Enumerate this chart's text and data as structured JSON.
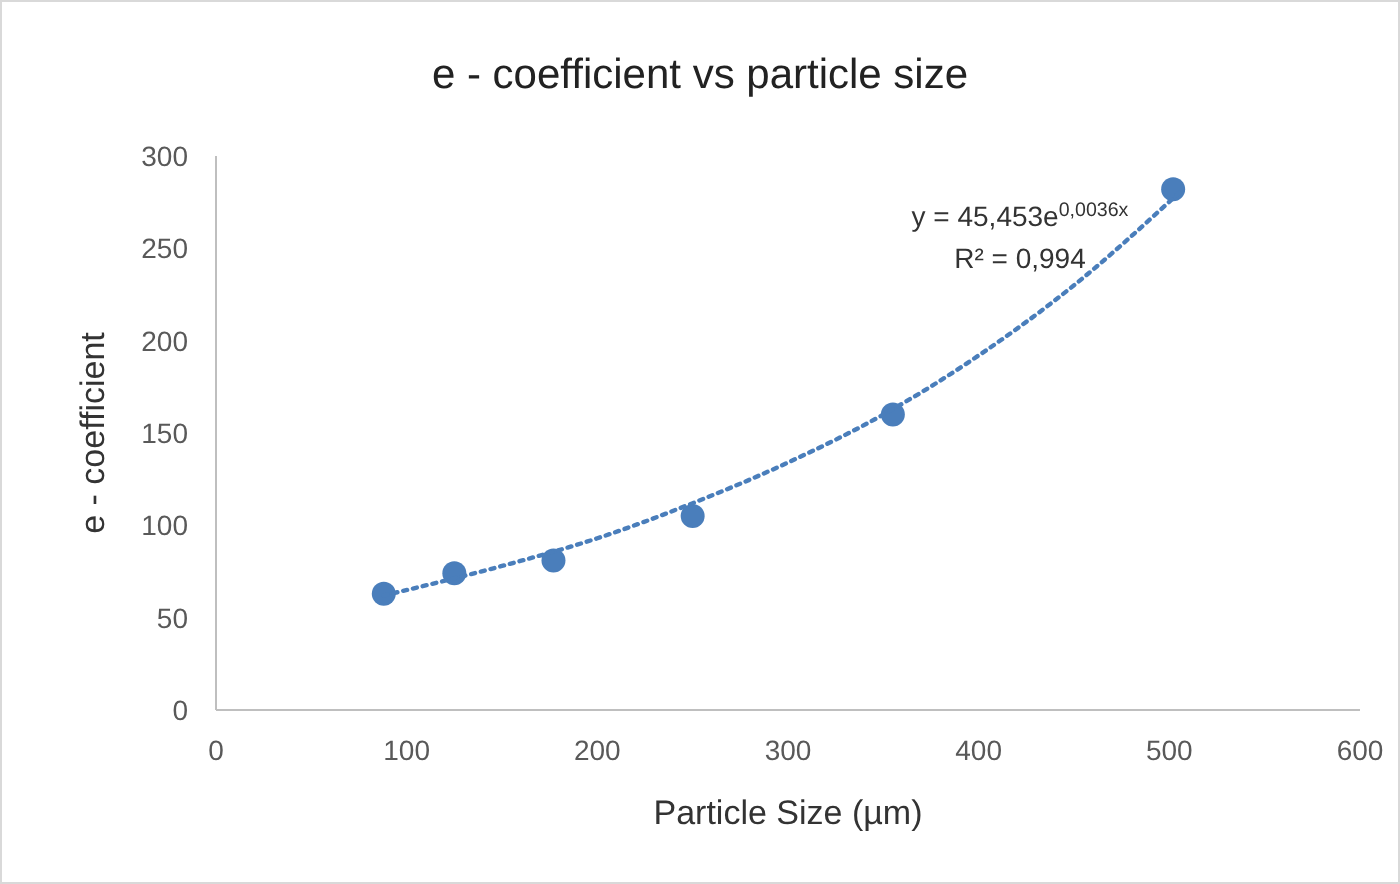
{
  "chart_data": {
    "type": "scatter",
    "title": "e - coefficient vs particle size",
    "xlabel": "Particle Size (µm)",
    "ylabel": "e - coefficient",
    "xlim": [
      0,
      600
    ],
    "xticks": [
      0,
      100,
      200,
      300,
      400,
      500,
      600
    ],
    "ylim": [
      0,
      300
    ],
    "yticks": [
      0,
      50,
      100,
      150,
      200,
      250,
      300
    ],
    "grid": false,
    "marker": "circle",
    "series": [
      {
        "color": "#4a7ebb",
        "x": [
          88,
          125,
          177,
          250,
          355,
          502
        ],
        "values": [
          63,
          74,
          81,
          105,
          160,
          282
        ]
      },
      {
        "type": "line",
        "color": "#4a7ebb",
        "line_style": "dotted",
        "marker": "none",
        "x": [
          88,
          150,
          200,
          250,
          300,
          350,
          400,
          450,
          505
        ],
        "values": [
          62,
          78,
          93,
          112,
          134,
          160,
          192,
          230,
          280
        ]
      }
    ],
    "annotations": [
      "y = 45,453e$^{0,0036x}$",
      "R² = 0,994"
    ]
  }
}
